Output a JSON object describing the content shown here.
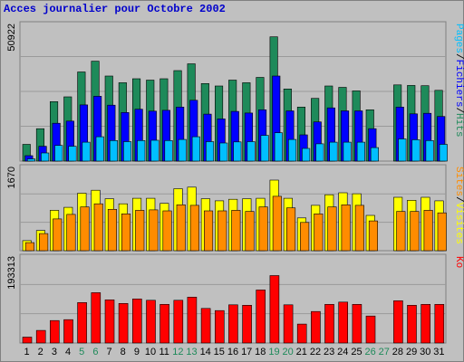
{
  "title": "Acces journalier pour Octobre 2002",
  "colors": {
    "hits": "#1e8a5a",
    "files": "#0000ff",
    "pages": "#00bfff",
    "visits": "#ffff00",
    "sites": "#ff8c00",
    "ko": "#ff0000",
    "weekend_label": "#1e8a5a",
    "weekday_label": "#000000",
    "title": "#0000cc"
  },
  "chart_data": [
    {
      "type": "bar",
      "panel": "top",
      "ymax_label": "50922",
      "ylim": [
        0,
        50922
      ],
      "legend": [
        "Pages",
        "/",
        "Fichiers",
        "/",
        "Hits"
      ],
      "categories": [
        "1",
        "2",
        "3",
        "4",
        "5",
        "6",
        "7",
        "8",
        "9",
        "10",
        "11",
        "12",
        "13",
        "14",
        "15",
        "16",
        "17",
        "18",
        "19",
        "20",
        "21",
        "22",
        "23",
        "24",
        "25",
        "26",
        "27",
        "28",
        "29",
        "30",
        "31"
      ],
      "weekend_days": [
        "5",
        "6",
        "12",
        "13",
        "19",
        "20",
        "26",
        "27"
      ],
      "series": [
        {
          "name": "Hits",
          "color_key": "hits",
          "values": [
            6200,
            12000,
            22000,
            23800,
            33000,
            37000,
            31500,
            29000,
            30500,
            30000,
            30500,
            33500,
            36000,
            28700,
            27800,
            30000,
            29000,
            31000,
            46000,
            26700,
            20000,
            23200,
            27800,
            27300,
            26000,
            19000,
            0,
            28200,
            28000,
            27900,
            26200
          ]
        },
        {
          "name": "Fichiers",
          "color_key": "files",
          "values": [
            2000,
            5500,
            14000,
            14800,
            20800,
            24000,
            20700,
            18000,
            19200,
            18500,
            18800,
            20000,
            22500,
            17400,
            15600,
            18400,
            17800,
            19000,
            31500,
            18600,
            9700,
            14500,
            19700,
            18600,
            18600,
            12000,
            0,
            20000,
            17500,
            17700,
            16500
          ]
        },
        {
          "name": "Pages",
          "color_key": "pages",
          "values": [
            800,
            3000,
            5800,
            5500,
            7000,
            9000,
            7600,
            7200,
            7600,
            7700,
            7600,
            8000,
            9000,
            7200,
            6700,
            7100,
            7200,
            9500,
            10500,
            8000,
            4700,
            6400,
            7000,
            7000,
            7000,
            5000,
            0,
            8200,
            7900,
            7600,
            6200
          ]
        }
      ]
    },
    {
      "type": "bar",
      "panel": "middle",
      "ymax_label": "1670",
      "ylim": [
        0,
        1670
      ],
      "legend": [
        "Sites",
        "/",
        "Visites"
      ],
      "categories": [
        "1",
        "2",
        "3",
        "4",
        "5",
        "6",
        "7",
        "8",
        "9",
        "10",
        "11",
        "12",
        "13",
        "14",
        "15",
        "16",
        "17",
        "18",
        "19",
        "20",
        "21",
        "22",
        "23",
        "24",
        "25",
        "26",
        "27",
        "28",
        "29",
        "30",
        "31"
      ],
      "series": [
        {
          "name": "Visites",
          "color_key": "visits",
          "values": [
            200,
            400,
            800,
            860,
            1140,
            1200,
            1030,
            930,
            1040,
            1040,
            940,
            1230,
            1260,
            1030,
            990,
            1020,
            1030,
            1040,
            1400,
            1040,
            650,
            900,
            1110,
            1150,
            1130,
            700,
            0,
            1060,
            1000,
            1060,
            990
          ]
        },
        {
          "name": "Sites",
          "color_key": "sites",
          "values": [
            160,
            340,
            630,
            720,
            870,
            930,
            820,
            730,
            800,
            810,
            790,
            910,
            900,
            790,
            790,
            800,
            780,
            870,
            1080,
            850,
            560,
            730,
            870,
            910,
            900,
            590,
            0,
            780,
            780,
            800,
            750
          ]
        }
      ]
    },
    {
      "type": "bar",
      "panel": "bottom",
      "ymax_label": "193313",
      "ylim": [
        0,
        193313
      ],
      "legend": [
        "Ko"
      ],
      "categories": [
        "1",
        "2",
        "3",
        "4",
        "5",
        "6",
        "7",
        "8",
        "9",
        "10",
        "11",
        "12",
        "13",
        "14",
        "15",
        "16",
        "17",
        "18",
        "19",
        "20",
        "21",
        "22",
        "23",
        "24",
        "25",
        "26",
        "27",
        "28",
        "29",
        "30",
        "31"
      ],
      "series": [
        {
          "name": "Ko",
          "color_key": "ko",
          "values": [
            13000,
            28000,
            50000,
            52000,
            90000,
            112000,
            96000,
            88000,
            98000,
            95000,
            86000,
            95000,
            102000,
            77000,
            72000,
            85000,
            84000,
            118000,
            150000,
            85000,
            42000,
            70000,
            86000,
            91000,
            86000,
            60000,
            0,
            94000,
            84000,
            86000,
            86000
          ]
        }
      ]
    }
  ]
}
